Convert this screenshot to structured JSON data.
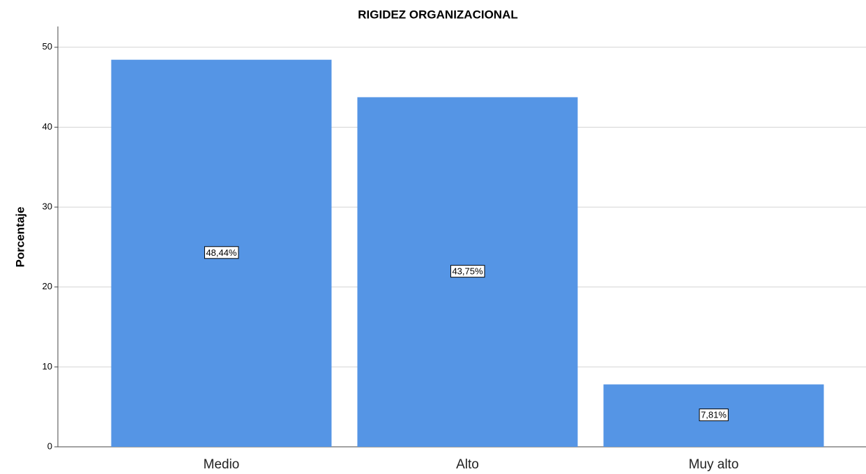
{
  "chart_data": {
    "type": "bar",
    "title": "RIGIDEZ ORGANIZACIONAL",
    "y_label": "Porcentaje",
    "categories": [
      "Medio",
      "Alto",
      "Muy alto"
    ],
    "values": [
      48.44,
      43.75,
      7.81
    ],
    "value_labels": [
      "48,44%",
      "43,75%",
      "7,81%"
    ],
    "color": "#5595e5",
    "ylim": [
      0,
      52.6
    ],
    "yticks": [
      0,
      10,
      20,
      30,
      40,
      50
    ],
    "grid": true
  }
}
